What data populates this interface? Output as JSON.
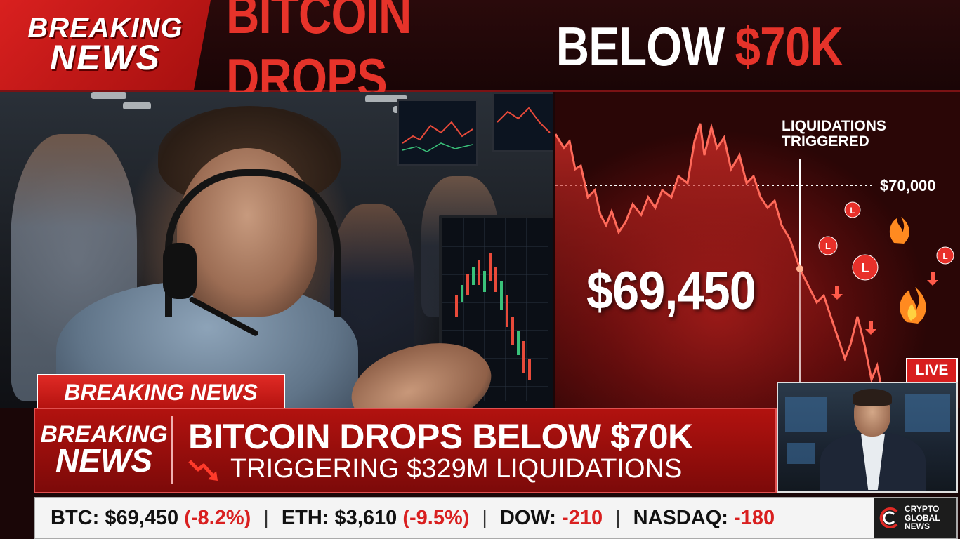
{
  "header": {
    "badge_line1": "BREAKING",
    "badge_line2": "NEWS",
    "headline_part1": "BITCOIN DROPS",
    "headline_part2": "BELOW",
    "headline_part3": "$70K"
  },
  "chart_panel": {
    "price": "$69,450",
    "annotation_line1": "LIQUIDATIONS",
    "annotation_line2": "TRIGGERED",
    "level_label": "$70,000",
    "liquidation_marker_icon": "liquidation-coin-icon",
    "fire_icon": "fire-icon"
  },
  "live": {
    "tag": "LIVE"
  },
  "lower_third": {
    "tab_label": "BREAKING NEWS",
    "badge_line1": "BREAKING",
    "badge_line2": "NEWS",
    "headline": "BITCOIN DROPS BELOW $70K",
    "subline": "TRIGGERING $329M LIQUIDATIONS"
  },
  "ticker": {
    "btc_label": "BTC: $69,450",
    "btc_change": "(-8.2%)",
    "eth_label": "ETH: $3,610",
    "eth_change": "(-9.5%)",
    "dow_label": "DOW:",
    "dow_change": "-210",
    "nasdaq_label": "NASDAQ:",
    "nasdaq_change": "-180",
    "separator": "|"
  },
  "logo": {
    "line1": "CRYPTO",
    "line2": "GLOBAL",
    "line3": "NEWS"
  },
  "colors": {
    "brand_red": "#d9201f",
    "headline_red": "#e6332a",
    "ticker_negative": "#d92020"
  }
}
